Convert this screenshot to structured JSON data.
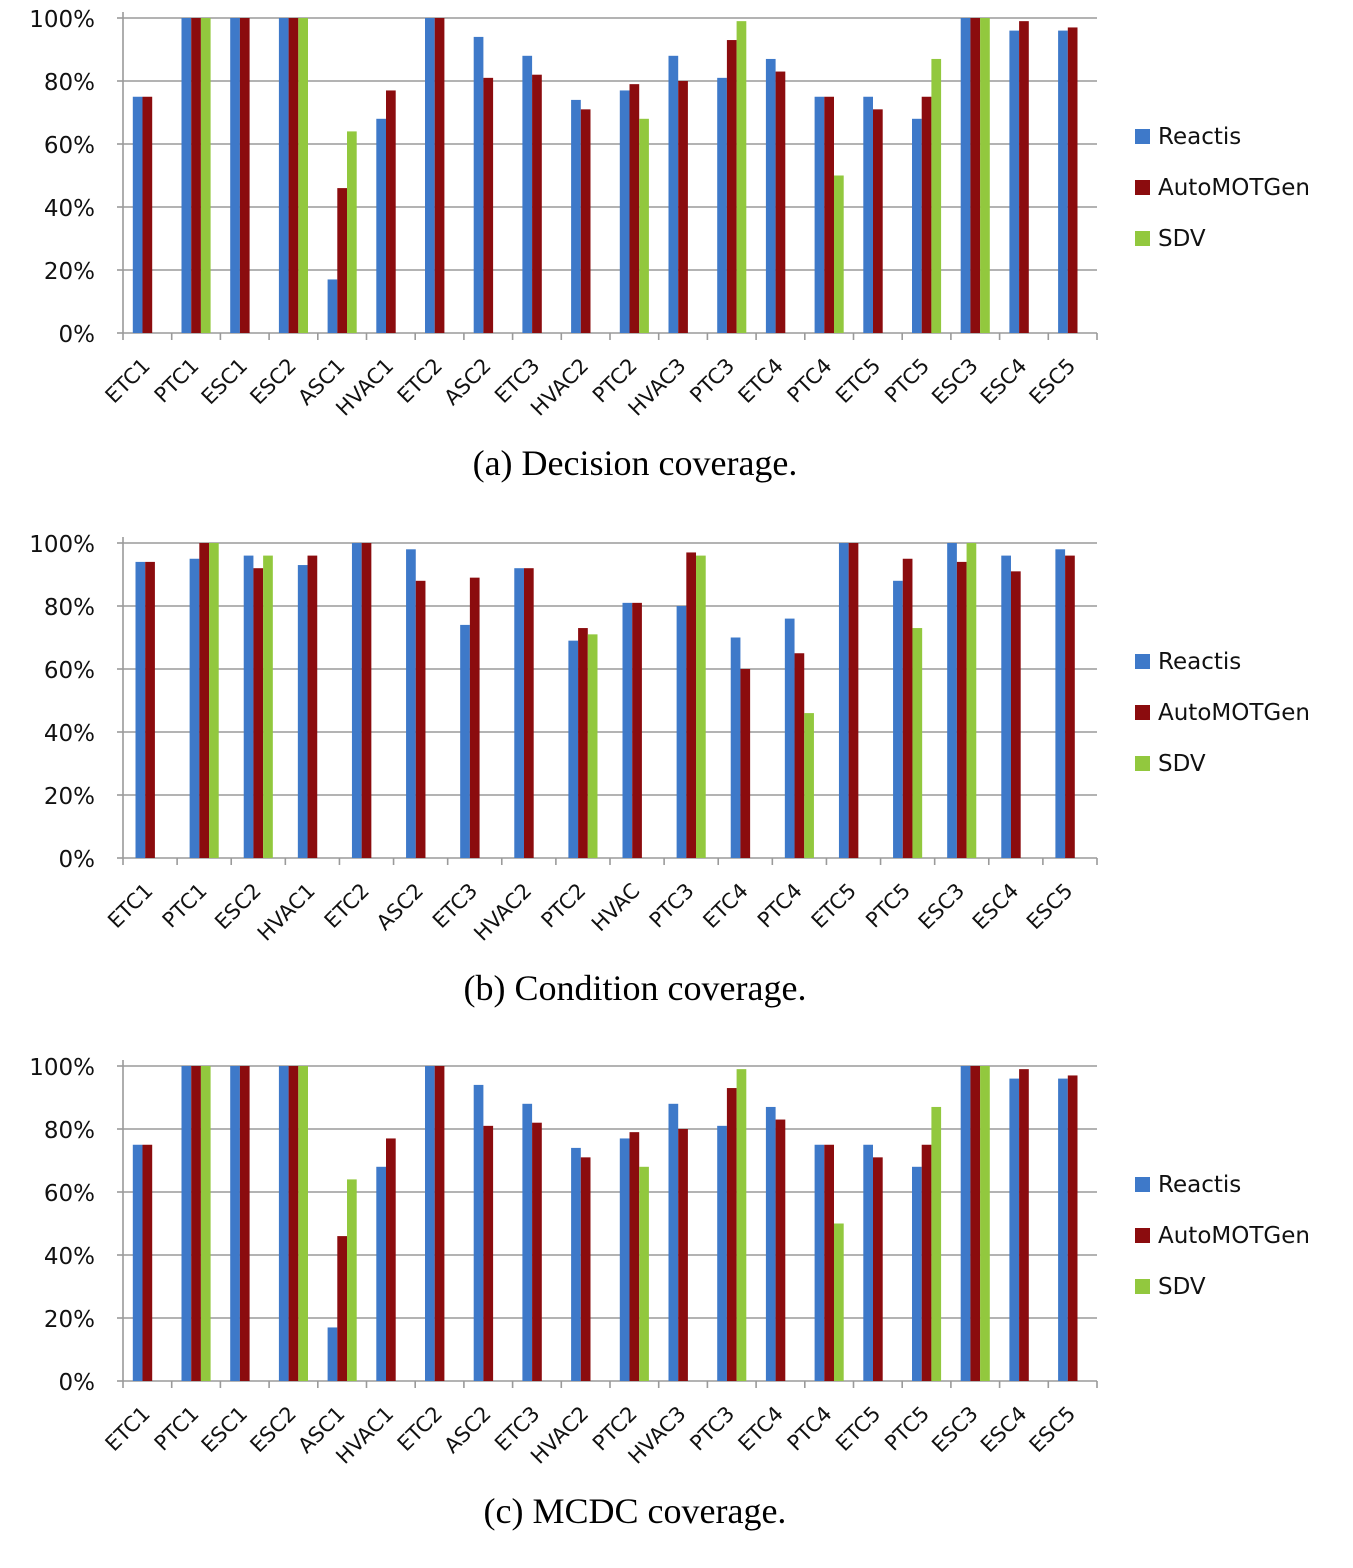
{
  "legend": [
    {
      "name": "Reactis",
      "color": "#3e79c9"
    },
    {
      "name": "AutoMOTGen",
      "color": "#8b0c0e"
    },
    {
      "name": "SDV",
      "color": "#92c83e"
    }
  ],
  "chart_data": [
    {
      "type": "bar",
      "caption": "(a) Decision coverage.",
      "ylim": [
        0,
        100
      ],
      "yticks": [
        "0%",
        "20%",
        "40%",
        "60%",
        "80%",
        "100%"
      ],
      "grid": true,
      "legend_position": "right",
      "categories": [
        "ETC1",
        "PTC1",
        "ESC1",
        "ESC2",
        "ASC1",
        "HVAC1",
        "ETC2",
        "ASC2",
        "ETC3",
        "HVAC2",
        "PTC2",
        "HVAC3",
        "PTC3",
        "ETC4",
        "PTC4",
        "ETC5",
        "PTC5",
        "ESC3",
        "ESC4",
        "ESC5"
      ],
      "series": [
        {
          "name": "Reactis",
          "values": [
            75,
            100,
            100,
            100,
            17,
            68,
            100,
            94,
            88,
            74,
            77,
            88,
            81,
            87,
            75,
            75,
            68,
            100,
            96,
            96
          ]
        },
        {
          "name": "AutoMOTGen",
          "values": [
            75,
            100,
            100,
            100,
            46,
            77,
            100,
            81,
            82,
            71,
            79,
            80,
            93,
            83,
            75,
            71,
            75,
            100,
            99,
            97
          ]
        },
        {
          "name": "SDV",
          "values": [
            null,
            100,
            null,
            100,
            64,
            null,
            null,
            null,
            null,
            null,
            68,
            null,
            99,
            null,
            50,
            null,
            87,
            100,
            null,
            null
          ]
        }
      ]
    },
    {
      "type": "bar",
      "caption": "(b) Condition coverage.",
      "ylim": [
        0,
        100
      ],
      "yticks": [
        "0%",
        "20%",
        "40%",
        "60%",
        "80%",
        "100%"
      ],
      "grid": true,
      "legend_position": "right",
      "categories": [
        "ETC1",
        "PTC1",
        "ESC2",
        "HVAC1",
        "ETC2",
        "ASC2",
        "ETC3",
        "HVAC2",
        "PTC2",
        "HVAC",
        "PTC3",
        "ETC4",
        "PTC4",
        "ETC5",
        "PTC5",
        "ESC3",
        "ESC4",
        "ESC5"
      ],
      "series": [
        {
          "name": "Reactis",
          "values": [
            94,
            95,
            96,
            93,
            100,
            98,
            74,
            92,
            69,
            81,
            80,
            70,
            76,
            100,
            88,
            100,
            96,
            98
          ]
        },
        {
          "name": "AutoMOTGen",
          "values": [
            94,
            100,
            92,
            96,
            100,
            88,
            89,
            92,
            73,
            81,
            97,
            60,
            65,
            100,
            95,
            94,
            91,
            96
          ]
        },
        {
          "name": "SDV",
          "values": [
            null,
            100,
            96,
            null,
            null,
            null,
            null,
            null,
            71,
            null,
            96,
            null,
            46,
            null,
            73,
            100,
            null,
            null
          ]
        }
      ]
    },
    {
      "type": "bar",
      "caption": "(c) MCDC coverage.",
      "ylim": [
        0,
        100
      ],
      "yticks": [
        "0%",
        "20%",
        "40%",
        "60%",
        "80%",
        "100%"
      ],
      "grid": true,
      "legend_position": "right",
      "categories": [
        "ETC1",
        "PTC1",
        "ESC1",
        "ESC2",
        "ASC1",
        "HVAC1",
        "ETC2",
        "ASC2",
        "ETC3",
        "HVAC2",
        "PTC2",
        "HVAC3",
        "PTC3",
        "ETC4",
        "PTC4",
        "ETC5",
        "PTC5",
        "ESC3",
        "ESC4",
        "ESC5"
      ],
      "series": [
        {
          "name": "Reactis",
          "values": [
            75,
            100,
            100,
            100,
            17,
            68,
            100,
            94,
            88,
            74,
            77,
            88,
            81,
            87,
            75,
            75,
            68,
            100,
            96,
            96
          ]
        },
        {
          "name": "AutoMOTGen",
          "values": [
            75,
            100,
            100,
            100,
            46,
            77,
            100,
            81,
            82,
            71,
            79,
            80,
            93,
            83,
            75,
            71,
            75,
            100,
            99,
            97
          ]
        },
        {
          "name": "SDV",
          "values": [
            null,
            100,
            null,
            100,
            64,
            null,
            null,
            null,
            null,
            null,
            68,
            null,
            99,
            null,
            50,
            null,
            87,
            100,
            null,
            null
          ]
        }
      ]
    }
  ]
}
